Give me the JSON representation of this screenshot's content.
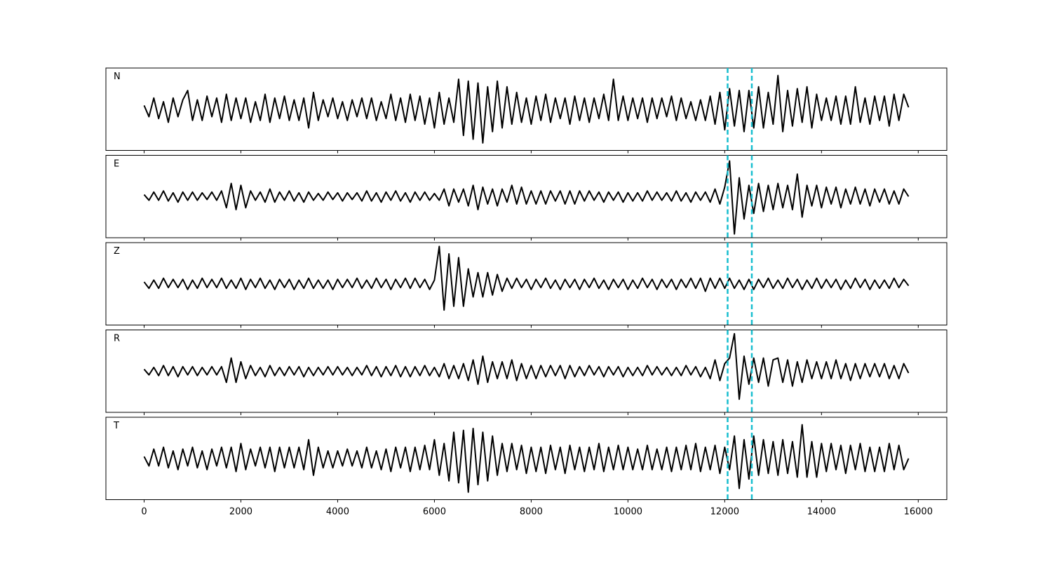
{
  "chart_data": {
    "type": "line",
    "x": [
      0,
      100,
      200,
      300,
      400,
      500,
      600,
      700,
      800,
      900,
      1000,
      1100,
      1200,
      1300,
      1400,
      1500,
      1600,
      1700,
      1800,
      1900,
      2000,
      2100,
      2200,
      2300,
      2400,
      2500,
      2600,
      2700,
      2800,
      2900,
      3000,
      3100,
      3200,
      3300,
      3400,
      3500,
      3600,
      3700,
      3800,
      3900,
      4000,
      4100,
      4200,
      4300,
      4400,
      4500,
      4600,
      4700,
      4800,
      4900,
      5000,
      5100,
      5200,
      5300,
      5400,
      5500,
      5600,
      5700,
      5800,
      5900,
      6000,
      6100,
      6200,
      6300,
      6400,
      6500,
      6600,
      6700,
      6800,
      6900,
      7000,
      7100,
      7200,
      7300,
      7400,
      7500,
      7600,
      7700,
      7800,
      7900,
      8000,
      8100,
      8200,
      8300,
      8400,
      8500,
      8600,
      8700,
      8800,
      8900,
      9000,
      9100,
      9200,
      9300,
      9400,
      9500,
      9600,
      9700,
      9800,
      9900,
      10000,
      10100,
      10200,
      10300,
      10400,
      10500,
      10600,
      10700,
      10800,
      10900,
      11000,
      11100,
      11200,
      11300,
      11400,
      11500,
      11600,
      11700,
      11800,
      11900,
      12000,
      12100,
      12200,
      12300,
      12400,
      12500,
      12600,
      12700,
      12800,
      12900,
      13000,
      13100,
      13200,
      13300,
      13400,
      13500,
      13600,
      13700,
      13800,
      13900,
      14000,
      14100,
      14200,
      14300,
      14400,
      14500,
      14600,
      14700,
      14800,
      14900,
      15000,
      15100,
      15200,
      15300,
      15400,
      15500,
      15600,
      15700,
      15800
    ],
    "xlim": [
      -790,
      16590
    ],
    "xticks": [
      0,
      2000,
      4000,
      6000,
      8000,
      10000,
      12000,
      14000,
      16000
    ],
    "ylim": [
      -1.1,
      1.1
    ],
    "vlines": [
      12060,
      12560
    ],
    "vline_color": "#17becf",
    "series": [
      {
        "name": "N",
        "color": "#000000",
        "values": [
          0.1,
          -0.2,
          0.3,
          -0.25,
          0.2,
          -0.35,
          0.3,
          -0.2,
          0.25,
          0.5,
          -0.3,
          0.25,
          -0.3,
          0.35,
          -0.2,
          0.3,
          -0.35,
          0.4,
          -0.3,
          0.3,
          -0.25,
          0.3,
          -0.35,
          0.2,
          -0.3,
          0.4,
          -0.35,
          0.3,
          -0.25,
          0.35,
          -0.3,
          0.25,
          -0.3,
          0.3,
          -0.5,
          0.45,
          -0.3,
          0.25,
          -0.2,
          0.3,
          -0.25,
          0.2,
          -0.3,
          0.25,
          -0.2,
          0.3,
          -0.25,
          0.3,
          -0.3,
          0.2,
          -0.25,
          0.4,
          -0.3,
          0.3,
          -0.35,
          0.4,
          -0.3,
          0.35,
          -0.4,
          0.3,
          -0.5,
          0.45,
          -0.4,
          0.3,
          -0.35,
          0.8,
          -0.7,
          0.75,
          -0.8,
          0.7,
          -0.9,
          0.6,
          -0.6,
          0.75,
          -0.5,
          0.6,
          -0.4,
          0.45,
          -0.35,
          0.3,
          -0.4,
          0.35,
          -0.3,
          0.4,
          -0.35,
          0.3,
          -0.25,
          0.3,
          -0.4,
          0.35,
          -0.3,
          0.3,
          -0.35,
          0.3,
          -0.25,
          0.4,
          -0.3,
          0.8,
          -0.3,
          0.35,
          -0.3,
          0.3,
          -0.25,
          0.3,
          -0.35,
          0.3,
          -0.25,
          0.3,
          -0.2,
          0.35,
          -0.3,
          0.3,
          -0.25,
          0.2,
          -0.3,
          0.25,
          -0.3,
          0.35,
          -0.4,
          0.45,
          -0.55,
          0.55,
          -0.45,
          0.5,
          -0.6,
          0.5,
          -0.5,
          0.6,
          -0.5,
          0.45,
          -0.4,
          0.9,
          -0.6,
          0.5,
          -0.45,
          0.55,
          -0.35,
          0.6,
          -0.5,
          0.4,
          -0.3,
          0.3,
          -0.3,
          0.35,
          -0.4,
          0.35,
          -0.4,
          0.6,
          -0.35,
          0.3,
          -0.4,
          0.35,
          -0.3,
          0.35,
          -0.45,
          0.4,
          -0.3,
          0.4,
          0.05
        ]
      },
      {
        "name": "E",
        "color": "#000000",
        "values": [
          0.05,
          -0.1,
          0.12,
          -0.1,
          0.15,
          -0.12,
          0.1,
          -0.15,
          0.12,
          -0.1,
          0.12,
          -0.1,
          0.1,
          -0.08,
          0.12,
          -0.1,
          0.15,
          -0.3,
          0.35,
          -0.35,
          0.3,
          -0.3,
          0.15,
          -0.1,
          0.12,
          -0.15,
          0.2,
          -0.15,
          0.12,
          -0.1,
          0.15,
          -0.12,
          0.1,
          -0.15,
          0.12,
          -0.1,
          0.08,
          -0.1,
          0.12,
          -0.08,
          0.1,
          -0.12,
          0.1,
          -0.08,
          0.1,
          -0.12,
          0.15,
          -0.12,
          0.1,
          -0.15,
          0.12,
          -0.1,
          0.15,
          -0.12,
          0.1,
          -0.15,
          0.12,
          -0.1,
          0.12,
          -0.1,
          0.08,
          -0.1,
          0.2,
          -0.25,
          0.2,
          -0.15,
          0.2,
          -0.25,
          0.3,
          -0.35,
          0.25,
          -0.2,
          0.2,
          -0.25,
          0.2,
          -0.15,
          0.3,
          -0.2,
          0.25,
          -0.2,
          0.15,
          -0.2,
          0.15,
          -0.2,
          0.15,
          -0.12,
          0.15,
          -0.2,
          0.15,
          -0.2,
          0.15,
          -0.12,
          0.15,
          -0.1,
          0.12,
          -0.15,
          0.12,
          -0.1,
          0.12,
          -0.15,
          0.1,
          -0.12,
          0.1,
          -0.12,
          0.15,
          -0.1,
          0.12,
          -0.1,
          0.1,
          -0.12,
          0.15,
          -0.12,
          0.1,
          -0.15,
          0.12,
          -0.1,
          0.12,
          -0.15,
          0.2,
          -0.2,
          0.25,
          0.95,
          -1.0,
          0.5,
          -0.6,
          0.3,
          -0.45,
          0.35,
          -0.4,
          0.3,
          -0.35,
          0.35,
          -0.3,
          0.3,
          -0.35,
          0.6,
          -0.55,
          0.3,
          -0.25,
          0.3,
          -0.3,
          0.25,
          -0.2,
          0.25,
          -0.3,
          0.2,
          -0.2,
          0.25,
          -0.2,
          0.2,
          -0.25,
          0.2,
          -0.15,
          0.2,
          -0.2,
          0.15,
          -0.2,
          0.2,
          0.0
        ]
      },
      {
        "name": "Z",
        "color": "#000000",
        "values": [
          0.05,
          -0.12,
          0.1,
          -0.12,
          0.15,
          -0.1,
          0.12,
          -0.1,
          0.12,
          -0.15,
          0.1,
          -0.12,
          0.15,
          -0.1,
          0.12,
          -0.1,
          0.15,
          -0.12,
          0.1,
          -0.12,
          0.15,
          -0.15,
          0.12,
          -0.1,
          0.15,
          -0.12,
          0.1,
          -0.15,
          0.12,
          -0.1,
          0.12,
          -0.15,
          0.1,
          -0.12,
          0.15,
          -0.12,
          0.1,
          -0.12,
          0.1,
          -0.15,
          0.12,
          -0.1,
          0.12,
          -0.1,
          0.15,
          -0.12,
          0.1,
          -0.12,
          0.15,
          -0.1,
          0.12,
          -0.15,
          0.12,
          -0.1,
          0.15,
          -0.12,
          0.15,
          -0.1,
          0.12,
          -0.15,
          0.1,
          1.0,
          -0.7,
          0.8,
          -0.6,
          0.7,
          -0.6,
          0.4,
          -0.35,
          0.3,
          -0.35,
          0.3,
          -0.3,
          0.25,
          -0.2,
          0.15,
          -0.12,
          0.15,
          -0.1,
          0.12,
          -0.15,
          0.12,
          -0.1,
          0.15,
          -0.12,
          0.1,
          -0.15,
          0.12,
          -0.1,
          0.12,
          -0.15,
          0.12,
          -0.1,
          0.15,
          -0.12,
          0.1,
          -0.15,
          0.12,
          -0.1,
          0.12,
          -0.15,
          0.1,
          -0.12,
          0.15,
          -0.1,
          0.12,
          -0.15,
          0.12,
          -0.1,
          0.12,
          -0.15,
          0.12,
          -0.1,
          0.15,
          -0.12,
          0.15,
          -0.2,
          0.15,
          -0.12,
          0.15,
          -0.12,
          0.15,
          -0.12,
          0.1,
          -0.15,
          0.12,
          -0.15,
          0.12,
          -0.1,
          0.15,
          -0.12,
          0.1,
          -0.12,
          0.15,
          -0.1,
          0.12,
          -0.15,
          0.1,
          -0.12,
          0.15,
          -0.12,
          0.12,
          -0.1,
          0.12,
          -0.15,
          0.1,
          -0.12,
          0.15,
          -0.1,
          0.12,
          -0.15,
          0.1,
          -0.12,
          0.1,
          -0.12,
          0.15,
          -0.1,
          0.12,
          -0.05
        ]
      },
      {
        "name": "R",
        "color": "#000000",
        "values": [
          0.05,
          -0.1,
          0.1,
          -0.12,
          0.15,
          -0.12,
          0.12,
          -0.15,
          0.12,
          -0.1,
          0.12,
          -0.12,
          0.1,
          -0.1,
          0.12,
          -0.1,
          0.12,
          -0.3,
          0.35,
          -0.3,
          0.25,
          -0.2,
          0.15,
          -0.12,
          0.1,
          -0.15,
          0.15,
          -0.12,
          0.1,
          -0.12,
          0.12,
          -0.1,
          0.12,
          -0.15,
          0.1,
          -0.12,
          0.1,
          -0.1,
          0.12,
          -0.1,
          0.12,
          -0.1,
          0.1,
          -0.12,
          0.1,
          -0.1,
          0.15,
          -0.12,
          0.12,
          -0.15,
          0.12,
          -0.12,
          0.15,
          -0.15,
          0.12,
          -0.15,
          0.12,
          -0.12,
          0.15,
          -0.12,
          0.1,
          -0.15,
          0.2,
          -0.2,
          0.15,
          -0.2,
          0.2,
          -0.25,
          0.3,
          -0.35,
          0.4,
          -0.3,
          0.25,
          -0.2,
          0.25,
          -0.2,
          0.3,
          -0.25,
          0.2,
          -0.2,
          0.15,
          -0.2,
          0.15,
          -0.15,
          0.15,
          -0.12,
          0.15,
          -0.2,
          0.15,
          -0.15,
          0.12,
          -0.12,
          0.15,
          -0.1,
          0.12,
          -0.15,
          0.12,
          -0.1,
          0.12,
          -0.15,
          0.1,
          -0.12,
          0.1,
          -0.12,
          0.15,
          -0.1,
          0.12,
          -0.1,
          0.1,
          -0.12,
          0.1,
          -0.12,
          0.15,
          -0.1,
          0.12,
          -0.15,
          0.1,
          -0.2,
          0.3,
          -0.25,
          0.2,
          0.35,
          1.0,
          -0.75,
          0.4,
          -0.35,
          0.35,
          -0.3,
          0.35,
          -0.4,
          0.3,
          0.35,
          -0.3,
          0.3,
          -0.4,
          0.25,
          -0.3,
          0.3,
          -0.2,
          0.25,
          -0.2,
          0.25,
          -0.2,
          0.3,
          -0.2,
          0.2,
          -0.25,
          0.2,
          -0.2,
          0.2,
          -0.15,
          0.2,
          -0.15,
          0.2,
          -0.2,
          0.15,
          -0.2,
          0.2,
          -0.05
        ]
      },
      {
        "name": "T",
        "color": "#000000",
        "values": [
          0.05,
          -0.2,
          0.25,
          -0.2,
          0.3,
          -0.25,
          0.2,
          -0.3,
          0.25,
          -0.2,
          0.3,
          -0.25,
          0.2,
          -0.3,
          0.25,
          -0.2,
          0.3,
          -0.25,
          0.3,
          -0.35,
          0.4,
          -0.3,
          0.25,
          -0.2,
          0.3,
          -0.25,
          0.3,
          -0.35,
          0.3,
          -0.25,
          0.3,
          -0.25,
          0.3,
          -0.3,
          0.5,
          -0.45,
          0.3,
          -0.25,
          0.2,
          -0.25,
          0.2,
          -0.2,
          0.25,
          -0.2,
          0.2,
          -0.25,
          0.3,
          -0.25,
          0.2,
          -0.3,
          0.25,
          -0.35,
          0.3,
          -0.25,
          0.3,
          -0.35,
          0.3,
          -0.3,
          0.35,
          -0.3,
          0.5,
          -0.45,
          0.4,
          -0.6,
          0.7,
          -0.65,
          0.75,
          -0.9,
          0.8,
          -0.7,
          0.7,
          -0.6,
          0.6,
          -0.45,
          0.4,
          -0.35,
          0.4,
          -0.3,
          0.35,
          -0.4,
          0.3,
          -0.35,
          0.3,
          -0.4,
          0.35,
          -0.3,
          0.3,
          -0.4,
          0.35,
          -0.3,
          0.3,
          -0.35,
          0.3,
          -0.3,
          0.4,
          -0.35,
          0.3,
          -0.3,
          0.35,
          -0.3,
          0.3,
          -0.3,
          0.25,
          -0.3,
          0.35,
          -0.3,
          0.25,
          -0.3,
          0.3,
          -0.35,
          0.3,
          -0.3,
          0.35,
          -0.3,
          0.4,
          -0.35,
          0.3,
          -0.3,
          0.35,
          -0.4,
          0.3,
          -0.3,
          0.6,
          -0.8,
          0.5,
          -0.55,
          0.6,
          -0.45,
          0.5,
          -0.4,
          0.45,
          -0.45,
          0.5,
          -0.4,
          0.45,
          -0.5,
          0.9,
          -0.5,
          0.45,
          -0.5,
          0.4,
          -0.35,
          0.4,
          -0.3,
          0.35,
          -0.4,
          0.35,
          -0.3,
          0.4,
          -0.35,
          0.3,
          -0.35,
          0.3,
          -0.35,
          0.4,
          -0.3,
          0.35,
          -0.3,
          0.0
        ]
      }
    ]
  }
}
